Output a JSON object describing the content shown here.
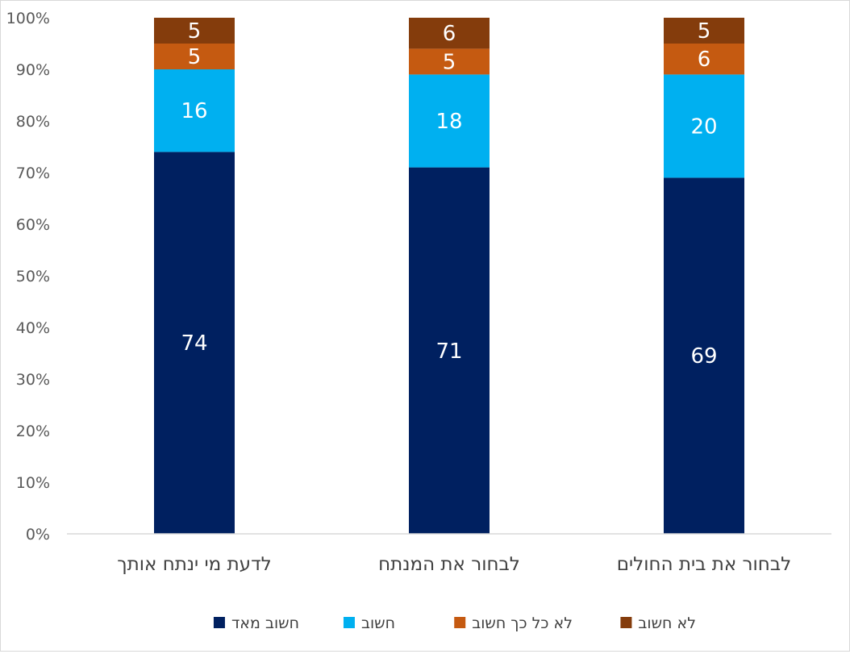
{
  "chart_data": {
    "type": "bar",
    "stacked": true,
    "percent_stacked": true,
    "categories": [
      "לדעת מי ינתח אותך",
      "לבחור את המנתח",
      "לבחור את בית החולים"
    ],
    "series": [
      {
        "name": "חשוב מאד",
        "color": "#002060",
        "label_color": "#ffffff",
        "values": [
          74,
          71,
          69
        ]
      },
      {
        "name": "חשוב",
        "color": "#00b0f0",
        "label_color": "#ffffff",
        "values": [
          16,
          18,
          20
        ]
      },
      {
        "name": "לא כל כך חשוב",
        "color": "#c55a11",
        "label_color": "#ffffff",
        "values": [
          5,
          5,
          6
        ]
      },
      {
        "name": "לא חשוב",
        "color": "#843c0c",
        "label_color": "#ffffff",
        "values": [
          5,
          6,
          5
        ]
      }
    ],
    "y_ticks": [
      "0%",
      "10%",
      "20%",
      "30%",
      "40%",
      "50%",
      "60%",
      "70%",
      "80%",
      "90%",
      "100%"
    ],
    "ylim": [
      0,
      100
    ],
    "grid": false,
    "legend_position": "bottom",
    "title": "",
    "xlabel": "",
    "ylabel": ""
  }
}
